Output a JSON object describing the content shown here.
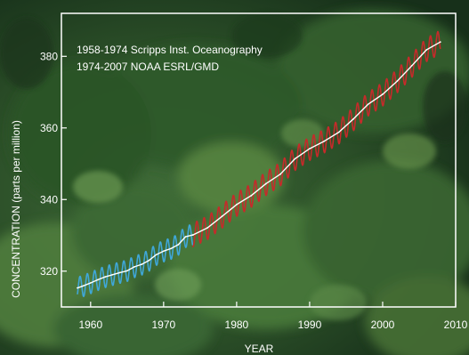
{
  "chart_data": {
    "type": "line",
    "title_lines": [
      "1958-1974 Scripps Inst. Oceanography",
      "1974-2007 NOAA ESRL/GMD"
    ],
    "xlabel": "YEAR",
    "ylabel": "CONCENTRATION (parts per million)",
    "xlim": [
      1956,
      2010
    ],
    "ylim": [
      310,
      392
    ],
    "x_ticks": [
      "1960",
      "1970",
      "1980",
      "1990",
      "2000",
      "2010"
    ],
    "y_ticks": [
      "320",
      "340",
      "360",
      "380"
    ],
    "grid": false,
    "series": [
      {
        "color": "#3fa7d8",
        "x": [
          1958.2,
          1959,
          1960,
          1961,
          1962,
          1963,
          1964,
          1965,
          1966,
          1967,
          1968,
          1969,
          1970,
          1971,
          1972,
          1973,
          1974
        ],
        "y": [
          315.3,
          315.9,
          316.7,
          317.6,
          318.4,
          319.0,
          319.6,
          320.1,
          321.2,
          321.9,
          323.0,
          324.6,
          325.6,
          326.3,
          327.4,
          329.6,
          330.1
        ],
        "seasonal_amplitude": 3.0
      },
      {
        "color": "#c62a2a",
        "x": [
          1974,
          1976,
          1978,
          1980,
          1982,
          1984,
          1986,
          1988,
          1990,
          1992,
          1994,
          1996,
          1998,
          2000,
          2002,
          2004,
          2006,
          2007.9
        ],
        "y": [
          330.1,
          332.1,
          335.3,
          338.6,
          341.1,
          344.4,
          347.1,
          351.4,
          354.2,
          356.3,
          358.8,
          362.5,
          366.6,
          369.4,
          373.1,
          377.4,
          381.8,
          384.0
        ],
        "seasonal_amplitude": 3.3
      }
    ]
  }
}
